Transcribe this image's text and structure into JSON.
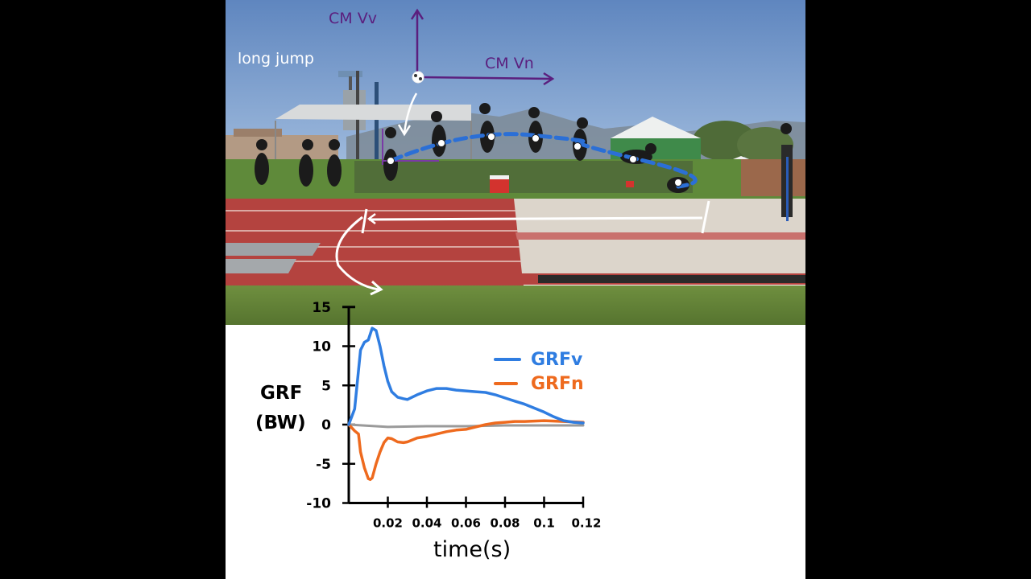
{
  "photo": {
    "caption": "long jump",
    "cm_vertical_label": "CM Vv",
    "cm_horizontal_label": "CM Vn",
    "annotation_color": "#5b1f7e",
    "trajectory_color": "#2b6fd6"
  },
  "chart_data": {
    "type": "line",
    "title": "",
    "xlabel": "time(s)",
    "ylabel": "GRF (BW)",
    "ylabel_line1": "GRF",
    "ylabel_line2": "(BW)",
    "xlim": [
      0,
      0.12
    ],
    "ylim": [
      -10,
      15
    ],
    "x_ticks": [
      "0.02",
      "0.04",
      "0.06",
      "0.08",
      "0.1",
      "0.12"
    ],
    "y_ticks": [
      "15",
      "10",
      "5",
      "0",
      "-5",
      "-10"
    ],
    "grid": false,
    "legend_position": "upper right",
    "series": [
      {
        "name": "GRFv",
        "color": "#2f7de1",
        "x": [
          0,
          0.003,
          0.006,
          0.008,
          0.01,
          0.012,
          0.014,
          0.016,
          0.018,
          0.02,
          0.022,
          0.025,
          0.028,
          0.03,
          0.035,
          0.04,
          0.045,
          0.05,
          0.055,
          0.06,
          0.065,
          0.07,
          0.075,
          0.08,
          0.085,
          0.09,
          0.095,
          0.1,
          0.105,
          0.11,
          0.115,
          0.12
        ],
        "values": [
          0,
          2,
          9.5,
          10.5,
          10.8,
          12.3,
          12,
          10,
          7.5,
          5.5,
          4.2,
          3.5,
          3.3,
          3.2,
          3.8,
          4.3,
          4.6,
          4.6,
          4.4,
          4.3,
          4.2,
          4.1,
          3.8,
          3.4,
          3,
          2.6,
          2.1,
          1.6,
          1.0,
          0.5,
          0.3,
          0.2
        ]
      },
      {
        "name": "GRFn",
        "color": "#ee6a1e",
        "x": [
          0,
          0.003,
          0.005,
          0.006,
          0.008,
          0.01,
          0.011,
          0.012,
          0.014,
          0.016,
          0.018,
          0.02,
          0.022,
          0.025,
          0.028,
          0.03,
          0.035,
          0.04,
          0.045,
          0.05,
          0.055,
          0.06,
          0.065,
          0.07,
          0.075,
          0.08,
          0.085,
          0.09,
          0.1,
          0.11,
          0.12
        ],
        "values": [
          0,
          -0.8,
          -1.2,
          -3.5,
          -5.5,
          -6.9,
          -7.0,
          -6.8,
          -5.0,
          -3.5,
          -2.3,
          -1.7,
          -1.8,
          -2.2,
          -2.3,
          -2.2,
          -1.7,
          -1.5,
          -1.2,
          -0.9,
          -0.7,
          -0.6,
          -0.3,
          0.0,
          0.2,
          0.3,
          0.4,
          0.4,
          0.5,
          0.4,
          0.3
        ]
      },
      {
        "name": "baseline",
        "color": "#9a9a9a",
        "x": [
          0,
          0.02,
          0.04,
          0.06,
          0.08,
          0.1,
          0.12
        ],
        "values": [
          0,
          -0.3,
          -0.2,
          -0.2,
          -0.1,
          -0.1,
          -0.1
        ]
      }
    ],
    "legend": [
      {
        "label": "GRFv",
        "color": "#2f7de1"
      },
      {
        "label": "GRFn",
        "color": "#ee6a1e"
      }
    ]
  }
}
